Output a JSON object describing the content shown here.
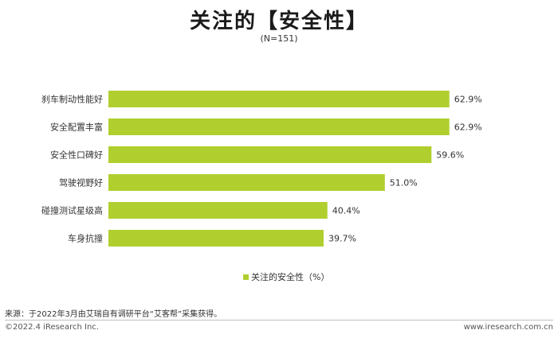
{
  "header": {
    "title": "关注的【安全性】",
    "subtitle": "(N=151)"
  },
  "chart_data": {
    "type": "bar",
    "orientation": "horizontal",
    "categories": [
      "刹车制动性能好",
      "安全配置丰富",
      "安全性口碑好",
      "驾驶视野好",
      "碰撞测试星级高",
      "车身抗撞"
    ],
    "series": [
      {
        "name": "关注的安全性（%）",
        "values": [
          62.9,
          62.9,
          59.6,
          51.0,
          40.4,
          39.7
        ],
        "labels": [
          "62.9%",
          "62.9%",
          "59.6%",
          "51.0%",
          "40.4%",
          "39.7%"
        ]
      }
    ],
    "xlim": [
      0,
      100
    ],
    "grid": false,
    "legend_position": "bottom",
    "bar_color": "#b0cf2f"
  },
  "legend": {
    "label": "关注的安全性（%）"
  },
  "footer": {
    "source": "来源：于2022年3月由艾瑞自有调研平台“艾客帮”采集获得。",
    "copyright": "©2022.4 iResearch Inc.",
    "website": "www.iresearch.com.cn"
  }
}
